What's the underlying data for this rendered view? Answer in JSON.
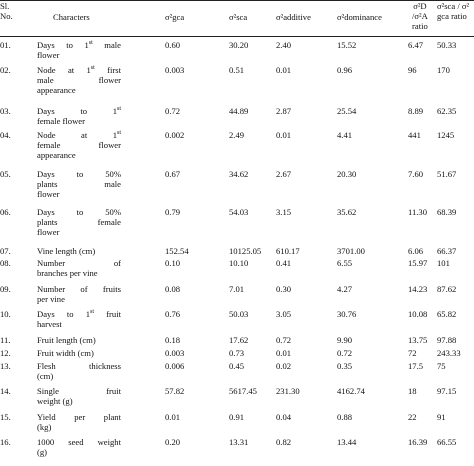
{
  "columns": {
    "sl": [
      "Sl.",
      "No."
    ],
    "characters": "Characters",
    "gca": "σ²gca",
    "sca": "σ²sca",
    "additive": "σ²additive",
    "dominance": "σ²dominance",
    "ratio_da": [
      "σ²D",
      "/σ²A",
      "ratio"
    ],
    "ratio_sca_gca": [
      "σ²sca / σ²",
      "gca ratio"
    ]
  },
  "rows": [
    {
      "sl": "01.",
      "char": [
        "Days to 1st male",
        "flower"
      ],
      "gca": "0.60",
      "sca": "30.20",
      "add": "2.40",
      "dom": "15.52",
      "da": "6.47",
      "sg": "50.33"
    },
    {
      "sl": "02.",
      "char": [
        "Node at 1st first",
        "male flower",
        "appearance"
      ],
      "gca": "0.003",
      "sca": "0.51",
      "add": "0.01",
      "dom": "0.96",
      "da": "96",
      "sg": "170"
    },
    {
      "sl": "03.",
      "char": [
        "Days to 1st",
        "female flower"
      ],
      "gca": "0.72",
      "sca": "44.89",
      "add": "2.87",
      "dom": "25.54",
      "da": "8.89",
      "sg": "62.35"
    },
    {
      "sl": "04.",
      "char": [
        "Node at 1st",
        "female flower",
        "appearance"
      ],
      "gca": "0.002",
      "sca": "2.49",
      "add": "0.01",
      "dom": "4.41",
      "da": "441",
      "sg": "1245"
    },
    {
      "sl": "05.",
      "char": [
        "Days to 50%",
        "plants male",
        "flower"
      ],
      "gca": "0.67",
      "sca": "34.62",
      "add": "2.67",
      "dom": "20.30",
      "da": "7.60",
      "sg": "51.67"
    },
    {
      "sl": "06.",
      "char": [
        "Days to 50%",
        "plants female",
        "flower"
      ],
      "gca": "0.79",
      "sca": "54.03",
      "add": "3.15",
      "dom": "35.62",
      "da": "11.30",
      "sg": "68.39"
    },
    {
      "sl": "07.",
      "char": [
        "Vine length (cm)"
      ],
      "gca": "152.54",
      "sca": "10125.05",
      "add": "610.17",
      "dom": "3701.00",
      "da": "6.06",
      "sg": "66.37"
    },
    {
      "sl": "08.",
      "char": [
        "Number of",
        "branches per vine"
      ],
      "gca": "0.10",
      "sca": "10.10",
      "add": "0.41",
      "dom": "6.55",
      "da": "15.97",
      "sg": "101"
    },
    {
      "sl": "09.",
      "char": [
        "Number of fruits",
        "per vine"
      ],
      "gca": "0.08",
      "sca": "7.01",
      "add": "0.30",
      "dom": "4.27",
      "da": "14.23",
      "sg": "87.62"
    },
    {
      "sl": "10.",
      "char": [
        "Days to 1st fruit",
        "harvest"
      ],
      "gca": "0.76",
      "sca": "50.03",
      "add": "3.05",
      "dom": "30.76",
      "da": "10.08",
      "sg": "65.82"
    },
    {
      "sl": "11.",
      "char": [
        "Fruit length (cm)"
      ],
      "gca": "0.18",
      "sca": "17.62",
      "add": "0.72",
      "dom": "9.90",
      "da": "13.75",
      "sg": "97.88"
    },
    {
      "sl": "12.",
      "char": [
        "Fruit width (cm)"
      ],
      "gca": "0.003",
      "sca": "0.73",
      "add": "0.01",
      "dom": "0.72",
      "da": "72",
      "sg": "243.33"
    },
    {
      "sl": "13.",
      "char": [
        "Flesh thickness",
        "(cm)"
      ],
      "gca": "0.006",
      "sca": "0.45",
      "add": "0.02",
      "dom": "0.35",
      "da": "17.5",
      "sg": "75"
    },
    {
      "sl": "14.",
      "char": [
        "Single fruit",
        "weight (g)"
      ],
      "gca": "57.82",
      "sca": "5617.45",
      "add": "231.30",
      "dom": "4162.74",
      "da": "18",
      "sg": "97.15"
    },
    {
      "sl": "15.",
      "char": [
        "Yield per plant",
        "(kg)"
      ],
      "gca": "0.01",
      "sca": "0.91",
      "add": "0.04",
      "dom": "0.88",
      "da": "22",
      "sg": "91"
    },
    {
      "sl": "16.",
      "char": [
        "1000 seed weight",
        "(g)"
      ],
      "gca": "0.20",
      "sca": "13.31",
      "add": "0.82",
      "dom": "13.44",
      "da": "16.39",
      "sg": "66.55"
    }
  ]
}
